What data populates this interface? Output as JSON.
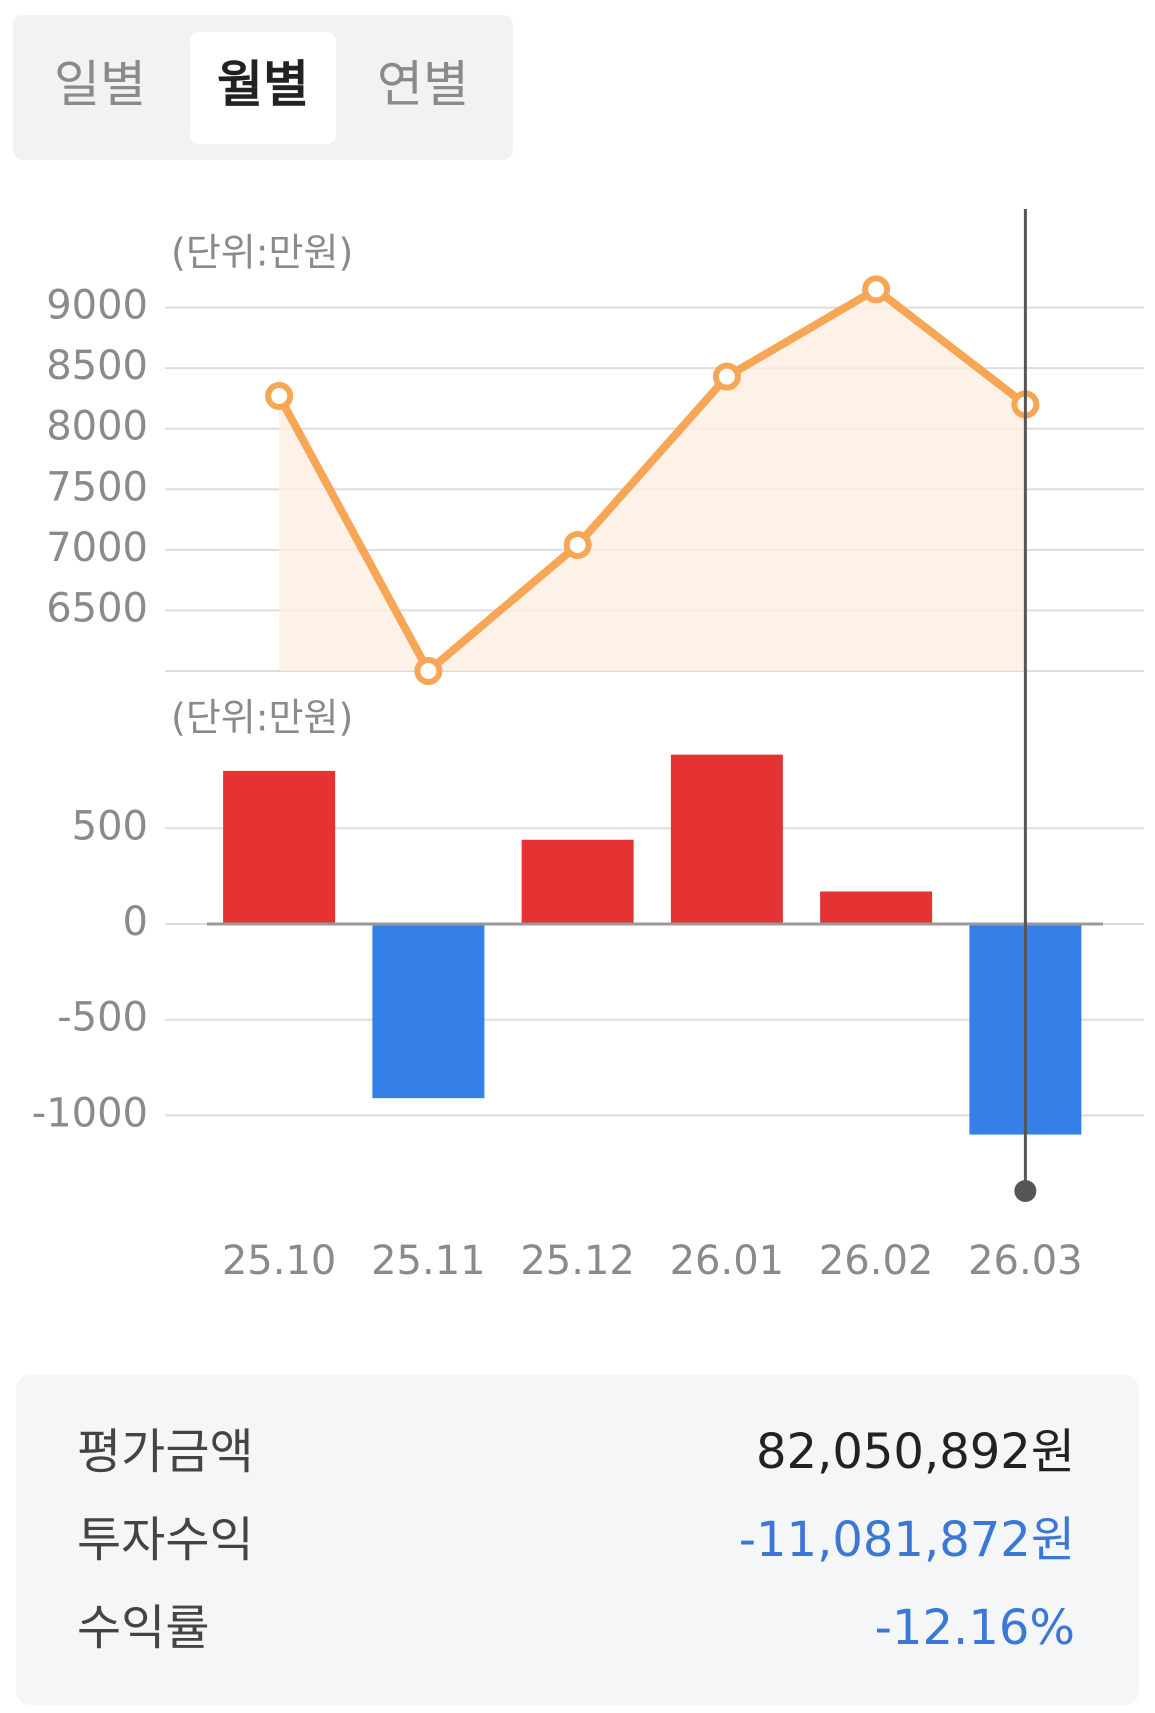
{
  "tabs": {
    "items": [
      "일별",
      "월별",
      "연별"
    ],
    "selected": 1
  },
  "chart_data": [
    {
      "type": "line",
      "y_unit": "(단위:만원)",
      "values": [
        8270,
        6000,
        7040,
        8430,
        9150,
        8200
      ],
      "color": "#f7a655",
      "area_color": "#fdeee2",
      "ylim": [
        6000,
        9500
      ],
      "yticks": [
        6500,
        7000,
        7500,
        8000,
        8500,
        9000
      ],
      "grid": true
    },
    {
      "type": "bar",
      "y_unit": "(단위:만원)",
      "categories": [
        "25.10",
        "25.11",
        "25.12",
        "26.01",
        "26.02",
        "26.03"
      ],
      "values": [
        800,
        -910,
        440,
        885,
        170,
        -1100
      ],
      "positive_color": "#e53232",
      "negative_color": "#3580e6",
      "ylim": [
        -1300,
        1000
      ],
      "yticks": [
        -1000,
        -500,
        0,
        500
      ],
      "grid": true
    }
  ],
  "summary": [
    {
      "label": "평가금액",
      "value": "82,050,892원",
      "color": "#222222"
    },
    {
      "label": "투자수익",
      "value": "-11,081,872원",
      "color": "#3a78d6"
    },
    {
      "label": "수익률",
      "value": "-12.16%",
      "color": "#3a78d6"
    }
  ]
}
